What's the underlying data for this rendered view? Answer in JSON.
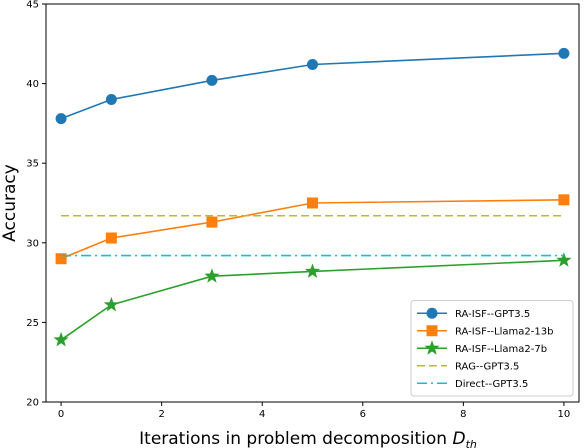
{
  "chart_data": {
    "type": "line",
    "xlabel": "Iterations in problem decomposition",
    "xlabel_math": "D",
    "xlabel_math_sub": "th",
    "ylabel": "Accuracy",
    "xlim": [
      -0.3,
      10.3
    ],
    "ylim": [
      20,
      45
    ],
    "xticks": [
      0,
      2,
      4,
      6,
      8,
      10
    ],
    "yticks": [
      20,
      25,
      30,
      35,
      40,
      45
    ],
    "grid": false,
    "legend_position": "lower-right",
    "series": [
      {
        "name": "RA-ISF--GPT3.5",
        "color": "#1f77b4",
        "marker": "circle",
        "style": "solid",
        "x": [
          0,
          1,
          3,
          5,
          10
        ],
        "y": [
          37.8,
          39.0,
          40.2,
          41.2,
          41.9
        ]
      },
      {
        "name": "RA-ISF--Llama2-13b",
        "color": "#ff7f0e",
        "marker": "square",
        "style": "solid",
        "x": [
          0,
          1,
          3,
          5,
          10
        ],
        "y": [
          29.0,
          30.3,
          31.3,
          32.5,
          32.7
        ]
      },
      {
        "name": "RA-ISF--Llama2-7b",
        "color": "#2ca02c",
        "marker": "star",
        "style": "solid",
        "x": [
          0,
          1,
          3,
          5,
          10
        ],
        "y": [
          23.9,
          26.1,
          27.9,
          28.2,
          28.9
        ]
      },
      {
        "name": "RAG--GPT3.5",
        "color": "#bcbd22",
        "marker": "none",
        "style": "dashed",
        "x": [
          0,
          10
        ],
        "y": [
          31.7,
          31.7
        ]
      },
      {
        "name": "Direct--GPT3.5",
        "color": "#17becf",
        "marker": "none",
        "style": "dashdot",
        "x": [
          0,
          10
        ],
        "y": [
          29.2,
          29.2
        ]
      }
    ]
  }
}
